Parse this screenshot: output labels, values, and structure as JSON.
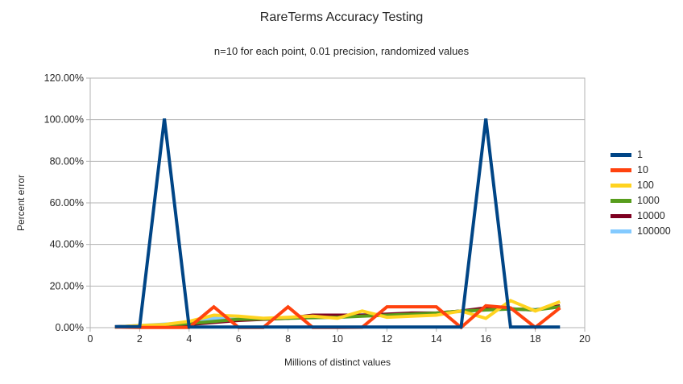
{
  "chart_data": {
    "type": "line",
    "title": "RareTerms Accuracy Testing",
    "subtitle": "n=10 for each point, 0.01 precision, randomized values",
    "xlabel": "Millions of distinct values",
    "ylabel": "Percent error",
    "xlim": [
      0,
      20
    ],
    "ylim": [
      0,
      120
    ],
    "x_tick_values": [
      0,
      2,
      4,
      6,
      8,
      10,
      12,
      14,
      16,
      18,
      20
    ],
    "x_tick_labels": [
      "0",
      "2",
      "4",
      "6",
      "8",
      "10",
      "12",
      "14",
      "16",
      "18",
      "20"
    ],
    "y_tick_values": [
      0,
      20,
      40,
      60,
      80,
      100,
      120
    ],
    "y_tick_labels": [
      "0.00%",
      "20.00%",
      "40.00%",
      "60.00%",
      "80.00%",
      "100.00%",
      "120.00%"
    ],
    "grid": "horizontal",
    "grid_color": "#b3b3b3",
    "legend_position": "right",
    "x": [
      1,
      2,
      3,
      4,
      5,
      6,
      7,
      8,
      9,
      10,
      11,
      12,
      13,
      14,
      15,
      16,
      17,
      18,
      19
    ],
    "series": [
      {
        "name": "1",
        "color": "#004586",
        "values": [
          0.5,
          0.5,
          100.5,
          0.3,
          0.3,
          0.3,
          0.3,
          0.3,
          0.3,
          0.3,
          0.3,
          0.3,
          0.3,
          0.3,
          0.3,
          100.5,
          0.3,
          0.3,
          0.3
        ]
      },
      {
        "name": "10",
        "color": "#FF420E",
        "values": [
          0.3,
          0.1,
          0.1,
          0.1,
          10,
          0.1,
          0.1,
          10,
          0.1,
          0.1,
          0.2,
          10,
          10,
          10,
          0.1,
          10.5,
          9.5,
          0.1,
          9.5
        ]
      },
      {
        "name": "100",
        "color": "#FFD320",
        "values": [
          0.3,
          1,
          1.5,
          3,
          6,
          5.5,
          4.5,
          5,
          5.5,
          4.5,
          8,
          5,
          5.5,
          6,
          8,
          4.5,
          13,
          8,
          12.5
        ]
      },
      {
        "name": "1000",
        "color": "#579D1C",
        "values": [
          0.3,
          0.8,
          1.2,
          2,
          3,
          4,
          4.2,
          4.5,
          4.8,
          5,
          5.5,
          6,
          6.5,
          7,
          8,
          8.5,
          9,
          8.5,
          10
        ]
      },
      {
        "name": "10000",
        "color": "#7E0021",
        "values": [
          0.4,
          0.8,
          1,
          1.5,
          2.5,
          3.5,
          4,
          4.5,
          6,
          6,
          6,
          6.5,
          7,
          7,
          8,
          9.5,
          9,
          8.5,
          10.5
        ]
      },
      {
        "name": "100000",
        "color": "#83CAFF",
        "values": [
          0.4,
          1,
          1.7,
          2.2,
          4.5,
          4,
          4.2,
          4.6,
          5,
          5.2,
          6.2,
          6,
          6.5,
          7,
          7.8,
          8.5,
          9,
          8.7,
          10
        ]
      }
    ],
    "draw_order": [
      "100000",
      "10000",
      "1000",
      "100",
      "10",
      "1"
    ],
    "line_width": 4
  }
}
